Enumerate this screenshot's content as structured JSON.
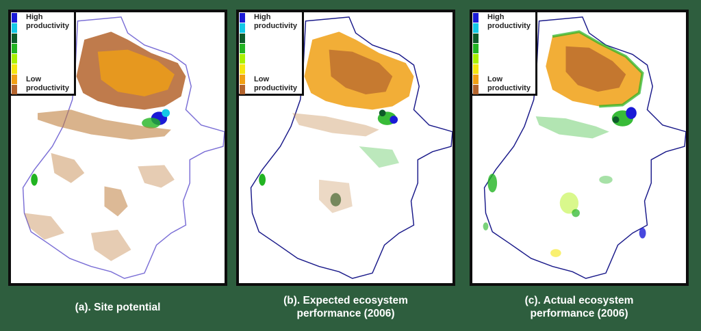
{
  "legend": {
    "high_label": "High productivity",
    "low_label": "Low productivity",
    "colors": [
      "#1a1ad6",
      "#14c8e6",
      "#0e5a2a",
      "#22b422",
      "#aaf000",
      "#f5e610",
      "#f0a014",
      "#b4642d"
    ]
  },
  "panels": [
    {
      "id": "a",
      "caption": "(a). Site potential"
    },
    {
      "id": "b",
      "caption": "(b). Expected ecosystem performance (2006)"
    },
    {
      "id": "c",
      "caption": "(c). Actual ecosystem performance (2006)"
    }
  ]
}
